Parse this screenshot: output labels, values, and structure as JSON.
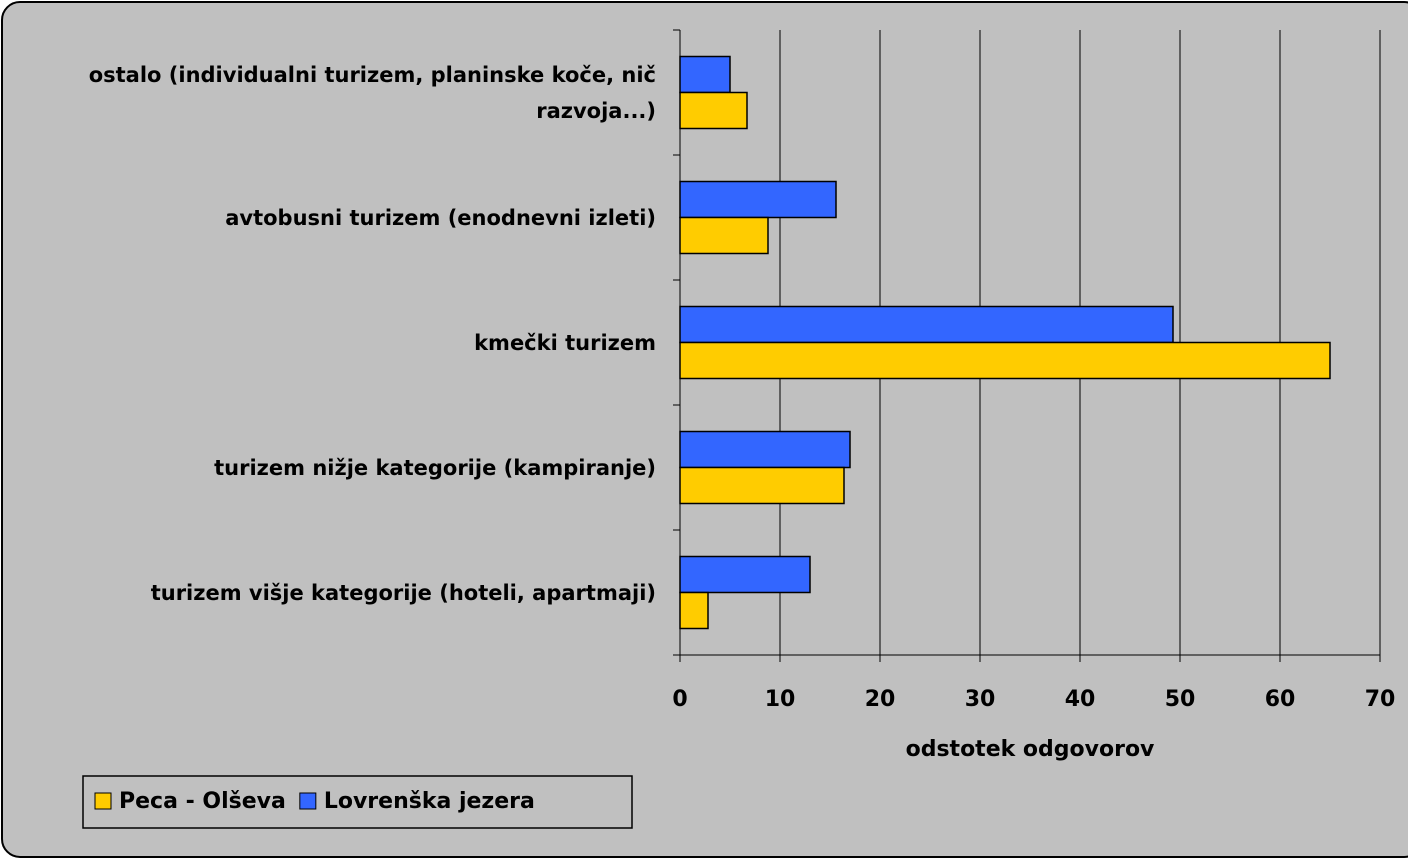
{
  "chart_data": {
    "type": "hbar",
    "categories": [
      "ostalo (individualni turizem, planinske koče, nič razvoja...)",
      "avtobusni turizem (enodnevni izleti)",
      "kmečki turizem",
      "turizem nižje kategorije (kampiranje)",
      "turizem višje kategorije (hoteli, apartmaji)"
    ],
    "series": [
      {
        "name": "Peca - Olševa",
        "color": "#ffcc00",
        "values": [
          6.7,
          8.8,
          65.0,
          16.4,
          2.8
        ]
      },
      {
        "name": "Lovrenška jezera",
        "color": "#3366ff",
        "values": [
          5.0,
          15.6,
          49.3,
          17.0,
          13.0
        ]
      }
    ],
    "xlabel": "odstotek odgovorov",
    "xlim": [
      0,
      70
    ],
    "xticks": [
      0,
      10,
      20,
      30,
      40,
      50,
      60,
      70
    ],
    "grid": true,
    "legend": "bottom-left"
  }
}
